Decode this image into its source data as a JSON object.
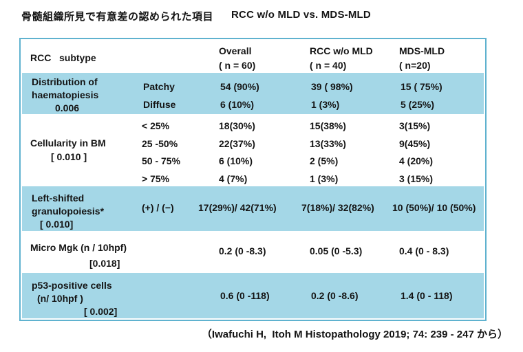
{
  "page": {
    "title_jp": "骨髄組織所見で有意差の認められた項目",
    "title_en": "RCC w/o MLD vs. MDS-MLD",
    "citation": "（Iwafuchi H,  Itoh M Histopathology 2019; 74: 239 - 247 から）"
  },
  "colors": {
    "row_highlight_blue": "#a4d7e7",
    "table_border_blue": "#5fb2cf",
    "text": "#141414",
    "background": "#ffffff"
  },
  "table": {
    "header": {
      "subtype_label": "RCC   subtype",
      "overall": [
        "Overall",
        "( n = 60)"
      ],
      "rcc_wo_mld": [
        "RCC w/o MLD",
        "( n = 40)"
      ],
      "mds_mld": [
        "MDS-MLD",
        "( n=20)"
      ]
    },
    "rows": [
      {
        "label": [
          "Distribution of",
          "haematopiesis"
        ],
        "pvalue": "0.006",
        "sub": [
          "Patchy",
          "Diffuse"
        ],
        "overall": [
          "54 (90%)",
          "6 (10%)"
        ],
        "rcc": [
          "39 ( 98%)",
          "1 (3%)"
        ],
        "mds": [
          "15 ( 75%)",
          "5 (25%)"
        ]
      },
      {
        "label": [
          "Cellularity in BM"
        ],
        "pvalue": "[ 0.010 ]",
        "sub": [
          "< 25%",
          "25 -50%",
          "50 - 75%",
          "> 75%"
        ],
        "overall": [
          "18(30%)",
          "22(37%)",
          "6 (10%)",
          "4 (7%)"
        ],
        "rcc": [
          "15(38%)",
          "13(33%)",
          "2 (5%)",
          "1 (3%)"
        ],
        "mds": [
          "3(15%)",
          "9(45%)",
          "4 (20%)",
          "3 (15%)"
        ]
      },
      {
        "label": [
          "Left-shifted",
          "granulopoiesis*"
        ],
        "pvalue": "[ 0.010]",
        "sub": [
          "(+) / (−)"
        ],
        "overall": [
          "17(29%)/ 42(71%)"
        ],
        "rcc": [
          "7(18%)/ 32(82%)"
        ],
        "mds": [
          "10 (50%)/ 10 (50%)"
        ]
      },
      {
        "label": [
          "Micro Mgk (n / 10hpf)"
        ],
        "pvalue": "[0.018]",
        "sub": [],
        "overall": [
          "0.2 (0 -8.3)"
        ],
        "rcc": [
          "0.05 (0 -5.3)"
        ],
        "mds": [
          "0.4 (0 - 8.3)"
        ]
      },
      {
        "label": [
          "p53-positive cells",
          "(n/ 10hpf )"
        ],
        "pvalue": "[ 0.002]",
        "sub": [],
        "overall": [
          "0.6 (0 -118)"
        ],
        "rcc": [
          "0.2 (0 -8.6)"
        ],
        "mds": [
          "1.4 (0 - 118)"
        ]
      }
    ]
  }
}
